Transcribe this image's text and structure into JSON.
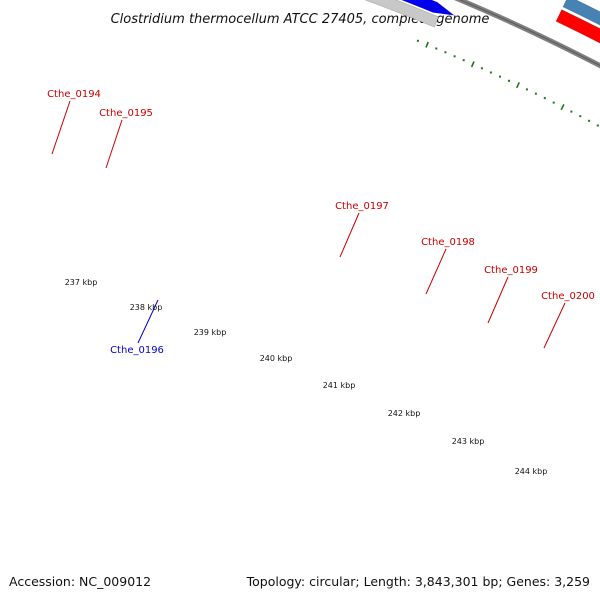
{
  "title": "Clostridium thermocellum ATCC 27405, complete genome",
  "footer": {
    "accession": "Accession: NC_009012",
    "stats": "Topology: circular; Length: 3,843,301 bp; Genes: 3,259"
  },
  "colors": {
    "background": "#ffffff",
    "backbone": "#808080",
    "tick_dots": "#1a7a1a",
    "forward_label": "#cc0000",
    "reverse_label": "#0000cc",
    "cds_red": "#ff0000",
    "feature_blue": "#4682b4",
    "feature_gray": "#c8c8c8",
    "feature_cyan": "#00ffff",
    "feature_dark_blue": "#0000ee",
    "feature_purple": "#483d8b"
  },
  "genes": [
    {
      "name": "Cthe_0194",
      "strand": "forward"
    },
    {
      "name": "Cthe_0195",
      "strand": "forward"
    },
    {
      "name": "Cthe_0196",
      "strand": "reverse"
    },
    {
      "name": "Cthe_0197",
      "strand": "forward"
    },
    {
      "name": "Cthe_0198",
      "strand": "forward"
    },
    {
      "name": "Cthe_0199",
      "strand": "forward"
    },
    {
      "name": "Cthe_0200",
      "strand": "forward"
    }
  ],
  "scale_ticks": [
    "237 kbp",
    "238 kbp",
    "239 kbp",
    "240 kbp",
    "241 kbp",
    "242 kbp",
    "243 kbp",
    "244 kbp"
  ]
}
